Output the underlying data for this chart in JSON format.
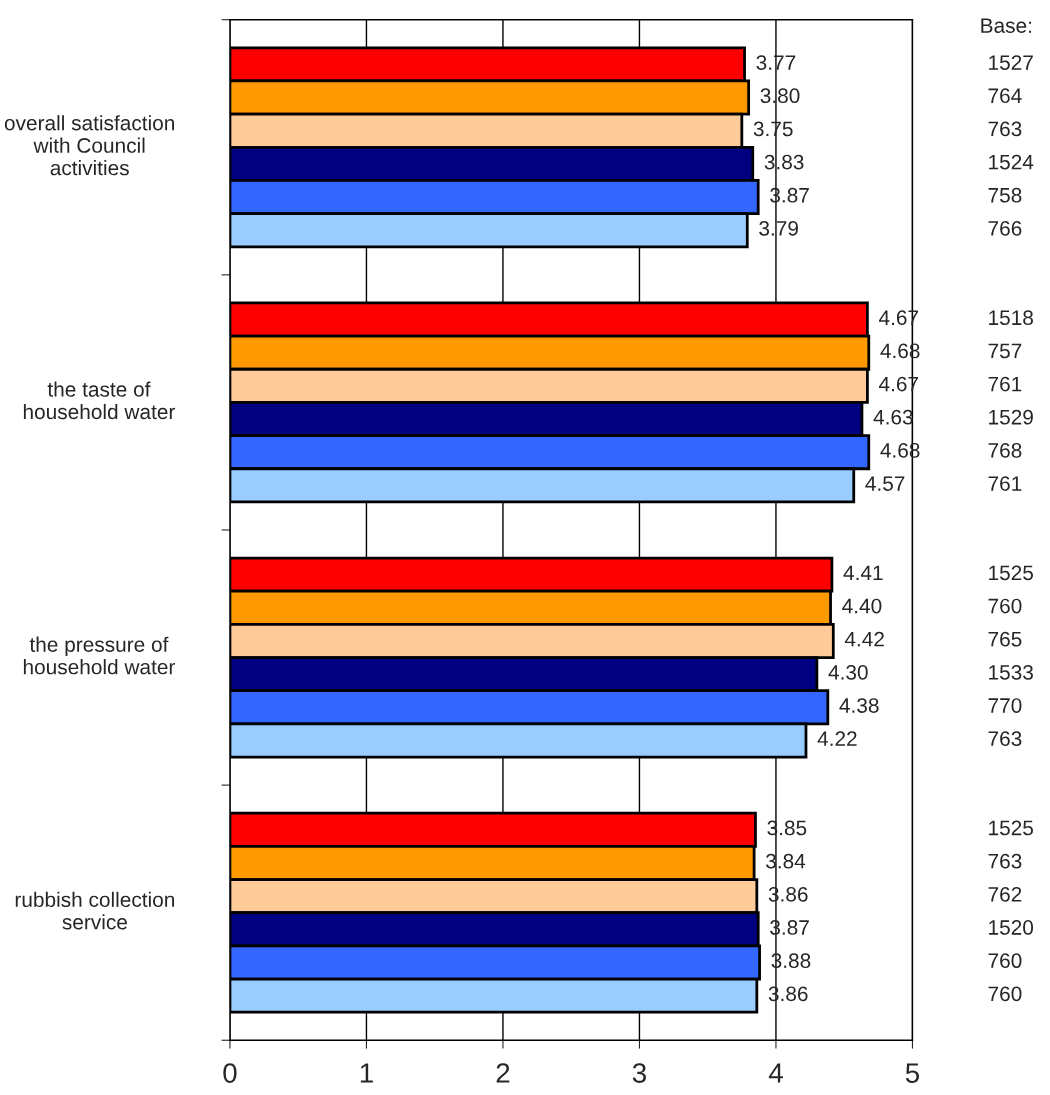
{
  "chart_data": {
    "type": "bar",
    "orientation": "horizontal",
    "categories": [
      "overall satisfaction with Council activities",
      "the taste of household water",
      "the pressure of household water",
      "rubbish collection service"
    ],
    "series": [
      {
        "color": "#ff0000",
        "values": [
          3.77,
          4.67,
          4.41,
          3.85
        ],
        "value_labels": [
          "3.77",
          "4.67",
          "4.41",
          "3.85"
        ]
      },
      {
        "color": "#ff9900",
        "values": [
          3.8,
          4.68,
          4.4,
          3.84
        ],
        "value_labels": [
          "3.80",
          "4.68",
          "4.40",
          "3.84"
        ]
      },
      {
        "color": "#ffcc99",
        "values": [
          3.75,
          4.67,
          4.42,
          3.86
        ],
        "value_labels": [
          "3.75",
          "4.67",
          "4.42",
          "3.86"
        ]
      },
      {
        "color": "#000080",
        "values": [
          3.83,
          4.63,
          4.3,
          3.87
        ],
        "value_labels": [
          "3.83",
          "4.63",
          "4.30",
          "3.87"
        ]
      },
      {
        "color": "#3366ff",
        "values": [
          3.87,
          4.68,
          4.38,
          3.88
        ],
        "value_labels": [
          "3.87",
          "4.68",
          "4.38",
          "3.88"
        ]
      },
      {
        "color": "#99ccff",
        "values": [
          3.79,
          4.57,
          4.22,
          3.86
        ],
        "value_labels": [
          "3.79",
          "4.57",
          "4.22",
          "3.86"
        ]
      }
    ],
    "xlim": [
      0,
      5
    ],
    "xticks": [
      0,
      1,
      2,
      3,
      4,
      5
    ],
    "grid": "x",
    "annotations": [
      "Base:",
      "1527",
      "764",
      "763",
      "1524",
      "758",
      "766",
      "1518",
      "757",
      "761",
      "1529",
      "768",
      "761",
      "1525",
      "760",
      "765",
      "1533",
      "770",
      "763",
      "1525",
      "763",
      "762",
      "1520",
      "760",
      "760"
    ]
  }
}
